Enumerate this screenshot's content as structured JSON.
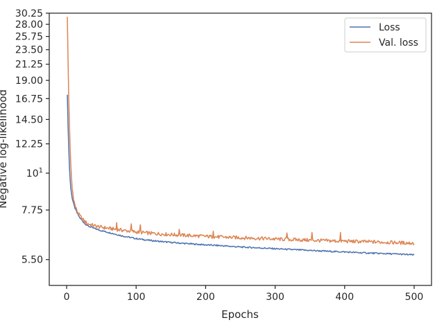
{
  "chart_data": {
    "type": "line",
    "xlabel": "Epochs",
    "ylabel": "Negative log-likelihood",
    "x_scale": "linear",
    "y_scale": "log",
    "xlim": [
      -25,
      525
    ],
    "ylim": [
      4.6,
      30.25
    ],
    "x_ticks": [
      0,
      100,
      200,
      300,
      400,
      500
    ],
    "x_tick_labels": [
      "0",
      "100",
      "200",
      "300",
      "400",
      "500"
    ],
    "y_ticks": [
      5.5,
      7.75,
      10,
      12.25,
      14.5,
      16.75,
      19.0,
      21.25,
      23.5,
      25.75,
      28.0,
      30.25
    ],
    "y_tick_labels": [
      "5.50",
      "7.75",
      "10^1",
      "12.25",
      "14.50",
      "16.75",
      "19.00",
      "21.25",
      "23.50",
      "25.75",
      "28.00",
      "30.25"
    ],
    "grid": false,
    "legend_position": "top-right",
    "legend": [
      "Loss",
      "Val. loss"
    ],
    "series": [
      {
        "name": "Loss",
        "color": "#4c72b0",
        "x": [
          1,
          2,
          3,
          4,
          5,
          6,
          7,
          8,
          10,
          12,
          15,
          18,
          20,
          25,
          30,
          40,
          50,
          60,
          70,
          80,
          90,
          100,
          120,
          140,
          160,
          180,
          200,
          220,
          250,
          280,
          300,
          320,
          350,
          380,
          400,
          420,
          450,
          480,
          500
        ],
        "y": [
          17.2,
          14.0,
          12.0,
          10.5,
          9.6,
          9.0,
          8.7,
          8.4,
          8.1,
          7.85,
          7.6,
          7.4,
          7.3,
          7.1,
          6.95,
          6.82,
          6.72,
          6.64,
          6.56,
          6.48,
          6.42,
          6.36,
          6.28,
          6.22,
          6.17,
          6.13,
          6.09,
          6.06,
          6.0,
          5.96,
          5.93,
          5.9,
          5.86,
          5.82,
          5.8,
          5.77,
          5.74,
          5.71,
          5.68
        ]
      },
      {
        "name": "Val. loss",
        "color": "#dd8452",
        "x": [
          1,
          2,
          3,
          4,
          5,
          6,
          7,
          8,
          10,
          12,
          15,
          18,
          20,
          25,
          30,
          40,
          50,
          60,
          70,
          80,
          90,
          100,
          120,
          140,
          160,
          180,
          200,
          220,
          250,
          280,
          300,
          320,
          350,
          380,
          400,
          420,
          450,
          480,
          500
        ],
        "y": [
          29.5,
          22.0,
          17.0,
          14.0,
          12.0,
          10.6,
          9.7,
          9.0,
          8.4,
          8.0,
          7.7,
          7.5,
          7.4,
          7.2,
          7.05,
          6.95,
          6.88,
          6.83,
          6.78,
          6.74,
          6.7,
          6.66,
          6.6,
          6.56,
          6.52,
          6.49,
          6.46,
          6.43,
          6.4,
          6.37,
          6.34,
          6.32,
          6.29,
          6.26,
          6.25,
          6.23,
          6.21,
          6.18,
          6.16
        ]
      }
    ]
  }
}
